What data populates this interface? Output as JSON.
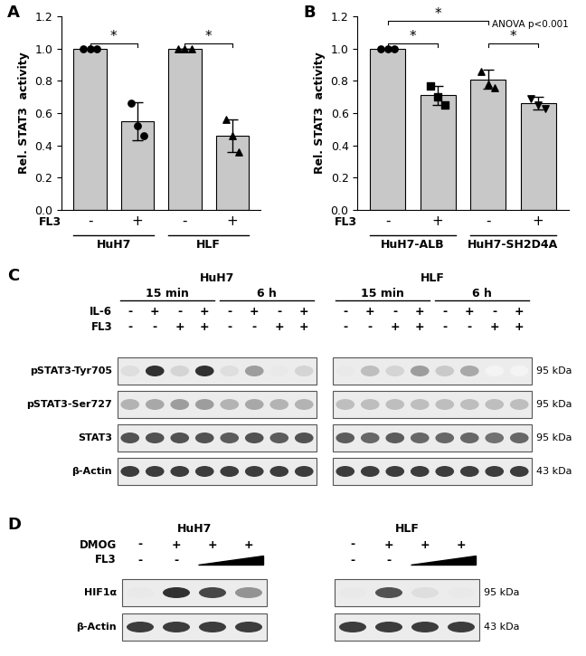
{
  "chart_data": [
    {
      "panel": "A",
      "type": "bar",
      "ylabel": "Rel. STAT3  activity",
      "row_label": "FL3",
      "categories": [
        "-",
        "+",
        "-",
        "+"
      ],
      "group_labels": [
        "HuH7",
        "HuH7",
        "HLF",
        "HLF"
      ],
      "values": [
        1.0,
        0.55,
        1.0,
        0.46
      ],
      "errors": [
        0,
        0.12,
        0,
        0.1
      ],
      "points": [
        {
          "marker": "circle",
          "values": [
            1.0,
            1.0,
            1.0
          ]
        },
        {
          "marker": "circle",
          "values": [
            0.66,
            0.52,
            0.46
          ]
        },
        {
          "marker": "triangle",
          "values": [
            1.0,
            1.0,
            1.0
          ]
        },
        {
          "marker": "triangle",
          "values": [
            0.56,
            0.46,
            0.36
          ]
        }
      ],
      "color": "#c8c8c8",
      "ylim": [
        0,
        1.2
      ],
      "yticks": [
        {
          "value": 0,
          "label": "0.0"
        },
        {
          "value": 0.2,
          "label": "0.2"
        },
        {
          "value": 0.4,
          "label": "0.4"
        },
        {
          "value": 0.6,
          "label": "0.6"
        },
        {
          "value": 0.8,
          "label": "0.8"
        },
        {
          "value": 1.0,
          "label": "1.0"
        },
        {
          "value": 1.2,
          "label": "1.2"
        }
      ],
      "significance": [
        {
          "between": [
            0,
            1
          ],
          "label": "*"
        },
        {
          "between": [
            2,
            3
          ],
          "label": "*"
        }
      ]
    },
    {
      "panel": "B",
      "type": "bar",
      "ylabel": "Rel. STAT3  activity",
      "row_label": "FL3",
      "annotation": "ANOVA p<0.001",
      "categories": [
        "-",
        "+",
        "-",
        "+"
      ],
      "group_labels": [
        "HuH7-ALB",
        "HuH7-ALB",
        "HuH7-SH2D4A",
        "HuH7-SH2D4A"
      ],
      "values": [
        1.0,
        0.71,
        0.81,
        0.66
      ],
      "errors": [
        0,
        0.06,
        0.06,
        0.04
      ],
      "points": [
        {
          "marker": "circle",
          "values": [
            1.0,
            1.0,
            1.0
          ]
        },
        {
          "marker": "square",
          "values": [
            0.77,
            0.7,
            0.65
          ]
        },
        {
          "marker": "triangle",
          "values": [
            0.86,
            0.78,
            0.76
          ]
        },
        {
          "marker": "triangle_down",
          "values": [
            0.69,
            0.65,
            0.63
          ]
        }
      ],
      "color": "#c8c8c8",
      "ylim": [
        0,
        1.2
      ],
      "yticks": [
        {
          "value": 0,
          "label": "0.0"
        },
        {
          "value": 0.2,
          "label": "0.2"
        },
        {
          "value": 0.4,
          "label": "0.4"
        },
        {
          "value": 0.6,
          "label": "0.6"
        },
        {
          "value": 0.8,
          "label": "0.8"
        },
        {
          "value": 1.0,
          "label": "1.0"
        },
        {
          "value": 1.2,
          "label": "1.2"
        }
      ],
      "significance": [
        {
          "between": [
            0,
            1
          ],
          "label": "*"
        },
        {
          "between": [
            0,
            2
          ],
          "label": "*"
        },
        {
          "between": [
            2,
            3
          ],
          "label": "*"
        }
      ]
    }
  ],
  "blots": [
    {
      "panel": "C",
      "time_labels": [
        "15 min",
        "15 min",
        "15 min",
        "15 min",
        "6 h",
        "6 h",
        "6 h",
        "6 h"
      ],
      "treatments": [
        {
          "label": "IL-6",
          "lanes": [
            "-",
            "+",
            "-",
            "+",
            "-",
            "+",
            "-",
            "+"
          ]
        },
        {
          "label": "FL3",
          "lanes": [
            "-",
            "-",
            "+",
            "+",
            "-",
            "-",
            "+",
            "+"
          ]
        }
      ],
      "rows": [
        {
          "label": "pSTAT3-Tyr705",
          "size": "95 kDa"
        },
        {
          "label": "pSTAT3-Ser727",
          "size": "95 kDa"
        },
        {
          "label": "STAT3",
          "size": "95 kDa"
        },
        {
          "label": "β-Actin",
          "size": "43 kDa"
        }
      ],
      "cell_lines": [
        {
          "label": "HuH7",
          "intensities": [
            [
              0.15,
              0.95,
              0.2,
              0.95,
              0.15,
              0.45,
              0.1,
              0.2
            ],
            [
              0.35,
              0.4,
              0.45,
              0.45,
              0.35,
              0.4,
              0.35,
              0.35
            ],
            [
              0.8,
              0.8,
              0.8,
              0.8,
              0.75,
              0.8,
              0.75,
              0.8
            ],
            [
              0.9,
              0.9,
              0.9,
              0.9,
              0.9,
              0.9,
              0.9,
              0.9
            ]
          ]
        },
        {
          "label": "HLF",
          "intensities": [
            [
              0.1,
              0.3,
              0.2,
              0.45,
              0.25,
              0.4,
              0.05,
              0.05
            ],
            [
              0.3,
              0.3,
              0.3,
              0.3,
              0.3,
              0.3,
              0.3,
              0.3
            ],
            [
              0.75,
              0.7,
              0.75,
              0.7,
              0.7,
              0.7,
              0.65,
              0.7
            ],
            [
              0.9,
              0.9,
              0.9,
              0.9,
              0.9,
              0.9,
              0.9,
              0.9
            ]
          ]
        }
      ]
    },
    {
      "panel": "D",
      "treatments": [
        {
          "label": "DMOG",
          "lanes": [
            "-",
            "+",
            "+",
            "+"
          ]
        },
        {
          "label": "FL3",
          "lanes": [
            "-",
            "-",
            null,
            null
          ],
          "ramp": true
        }
      ],
      "rows": [
        {
          "label": "HIF1α",
          "size": "95 kDa"
        },
        {
          "label": "β-Actin",
          "size": "43 kDa"
        }
      ],
      "cell_lines": [
        {
          "label": "HuH7",
          "intensities": [
            [
              0.1,
              0.95,
              0.85,
              0.5
            ],
            [
              0.9,
              0.9,
              0.9,
              0.9
            ]
          ]
        },
        {
          "label": "HLF",
          "intensities": [
            [
              0.1,
              0.8,
              0.15,
              0.1
            ],
            [
              0.9,
              0.9,
              0.9,
              0.9
            ]
          ]
        }
      ]
    }
  ]
}
